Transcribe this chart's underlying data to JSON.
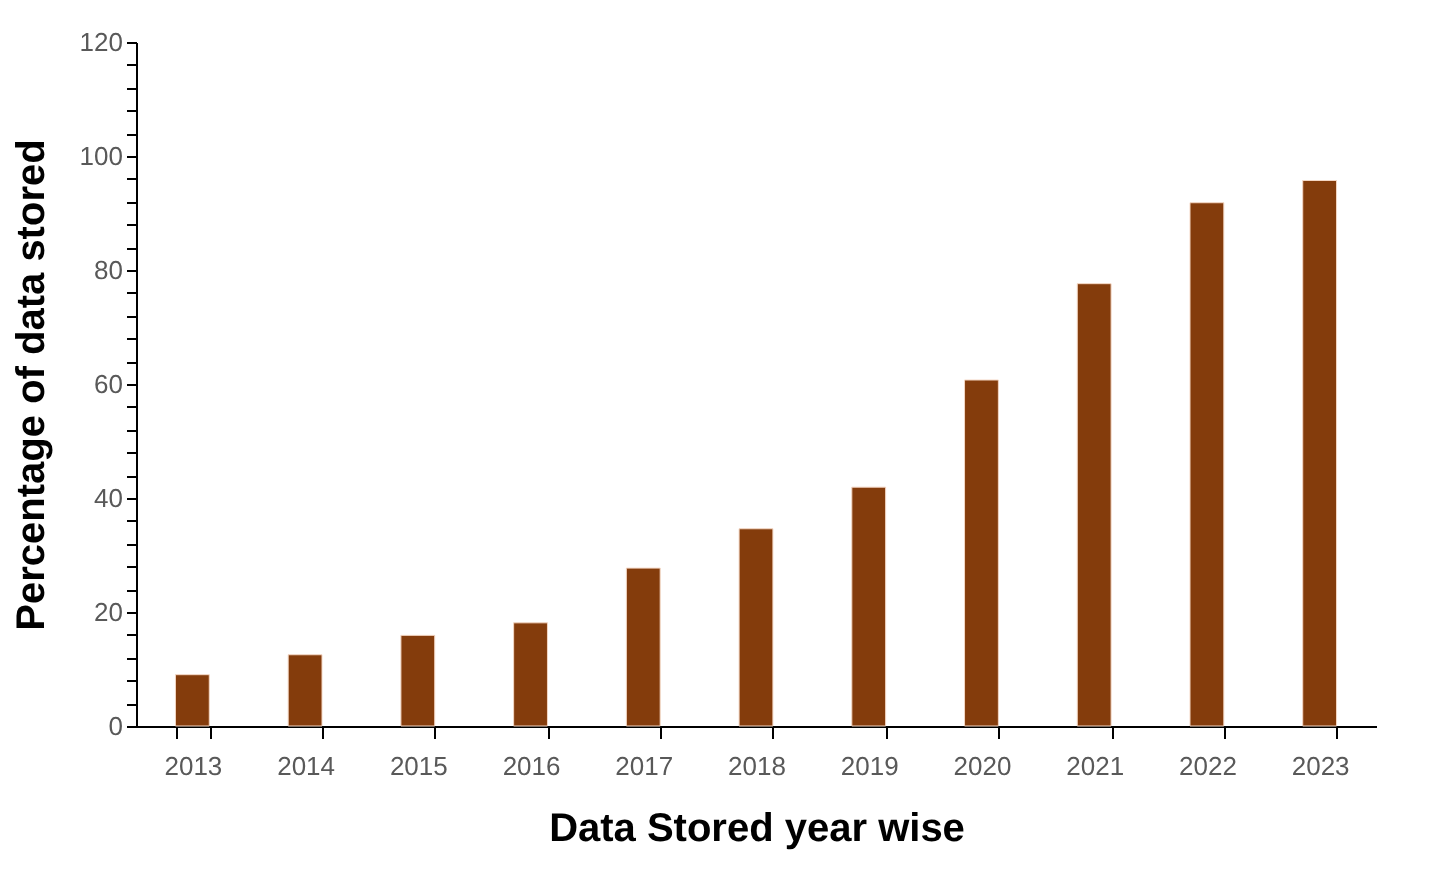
{
  "chart_data": {
    "type": "bar",
    "xlabel": "Data Stored year wise",
    "ylabel": "Percentage of data stored",
    "categories": [
      "2013",
      "2014",
      "2015",
      "2016",
      "2017",
      "2018",
      "2019",
      "2020",
      "2021",
      "2022",
      "2023"
    ],
    "values": [
      9.0,
      12.5,
      15.9,
      18.1,
      27.7,
      34.6,
      41.9,
      60.7,
      77.6,
      91.8,
      95.7
    ],
    "color": "#843c0c",
    "ylim": [
      0,
      120
    ],
    "yticks": [
      0,
      {
        "value": 4,
        "label": null
      },
      {
        "value": 8,
        "label": null
      },
      {
        "value": 12,
        "label": null
      },
      {
        "value": 16,
        "label": null
      },
      20,
      {
        "value": 24,
        "label": null
      },
      {
        "value": 28,
        "label": null
      },
      {
        "value": 32,
        "label": null
      },
      {
        "value": 36,
        "label": null
      },
      40,
      {
        "value": 44,
        "label": null
      },
      {
        "value": 48,
        "label": null
      },
      {
        "value": 52,
        "label": null
      },
      {
        "value": 56,
        "label": null
      },
      60,
      {
        "value": 64,
        "label": null
      },
      {
        "value": 68,
        "label": null
      },
      {
        "value": 72,
        "label": null
      },
      {
        "value": 76,
        "label": null
      },
      80,
      {
        "value": 84,
        "label": null
      },
      {
        "value": 88,
        "label": null
      },
      {
        "value": 92,
        "label": null
      },
      {
        "value": 96,
        "label": null
      },
      100,
      {
        "value": 104,
        "label": null
      },
      {
        "value": 108,
        "label": null
      },
      {
        "value": 112,
        "label": null
      },
      {
        "value": 116,
        "label": null
      },
      120
    ],
    "grid": false
  }
}
